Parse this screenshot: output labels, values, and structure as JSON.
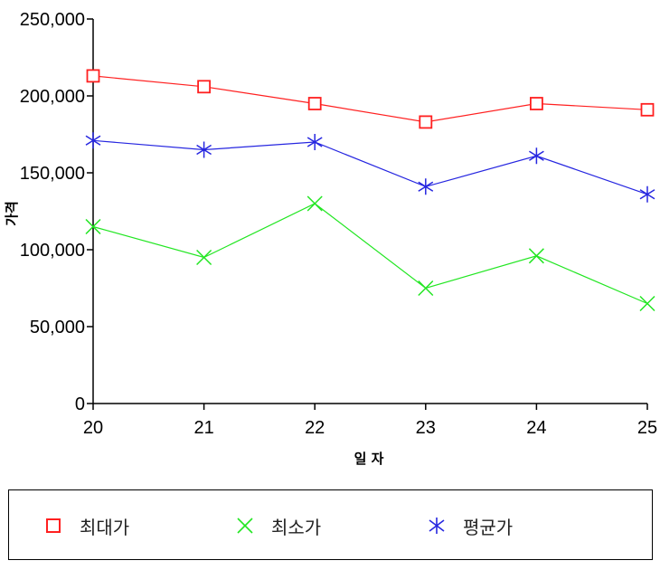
{
  "chart_data": {
    "type": "line",
    "x": [
      20,
      21,
      22,
      23,
      24,
      25
    ],
    "xlabel": "일 자",
    "ylabel": "가격",
    "ylim": [
      0,
      250000
    ],
    "yticks": [
      0,
      50000,
      100000,
      150000,
      200000,
      250000
    ],
    "ytick_labels": [
      "0",
      "50,000",
      "100,000",
      "150,000",
      "200,000",
      "250,000"
    ],
    "xtick_labels": [
      "20",
      "21",
      "22",
      "23",
      "24",
      "25"
    ],
    "legend_position": "bottom",
    "grid": false,
    "series": [
      {
        "name": "최대가",
        "color": "#ff2020",
        "marker": "square-icon",
        "values": [
          213000,
          206000,
          195000,
          183000,
          195000,
          191000
        ]
      },
      {
        "name": "최소가",
        "color": "#22e622",
        "marker": "x-icon",
        "values": [
          115000,
          95000,
          130000,
          75000,
          96000,
          65000
        ]
      },
      {
        "name": "평균가",
        "color": "#2626e0",
        "marker": "asterisk-icon",
        "values": [
          171000,
          165000,
          170000,
          141000,
          161000,
          136000
        ]
      }
    ]
  }
}
